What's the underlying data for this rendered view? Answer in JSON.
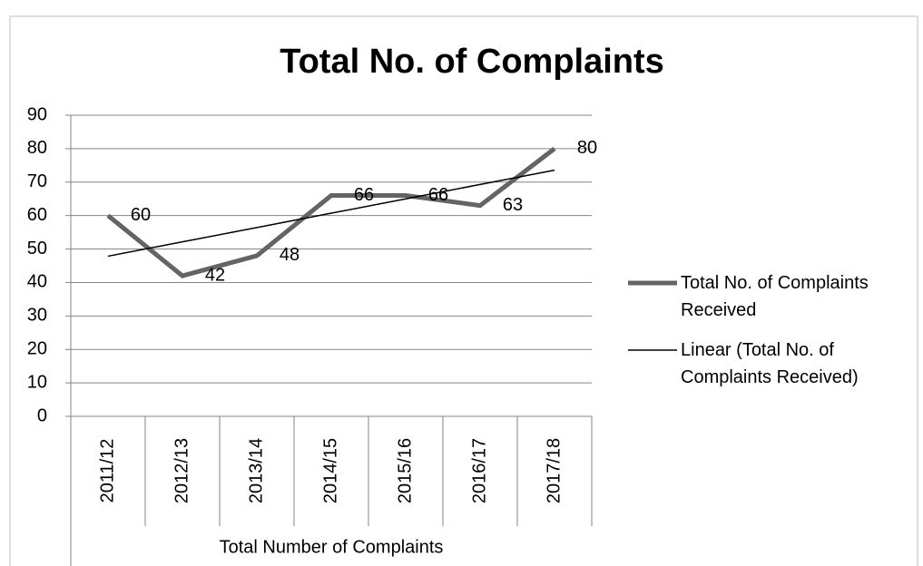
{
  "chart_data": {
    "type": "line",
    "title": "Total No. of Complaints",
    "categories": [
      "2011/12",
      "2012/13",
      "2013/14",
      "2014/15",
      "2015/16",
      "2016/17",
      "2017/18"
    ],
    "x_group_label": "Total Number of Complaints",
    "series": [
      {
        "name": "Total No. of Complaints Received",
        "color": "#646464",
        "values": [
          60,
          42,
          48,
          66,
          66,
          63,
          80
        ],
        "data_labels": true
      },
      {
        "name": "Linear (Total No. of Complaints Received)",
        "color": "#000000",
        "values": [
          47.86,
          52.14,
          56.43,
          60.71,
          65.0,
          69.29,
          73.57
        ],
        "data_labels": false
      }
    ],
    "ylim": [
      0,
      90
    ],
    "yticks": [
      0,
      10,
      20,
      30,
      40,
      50,
      60,
      70,
      80,
      90
    ],
    "grid": true,
    "legend": "right"
  }
}
